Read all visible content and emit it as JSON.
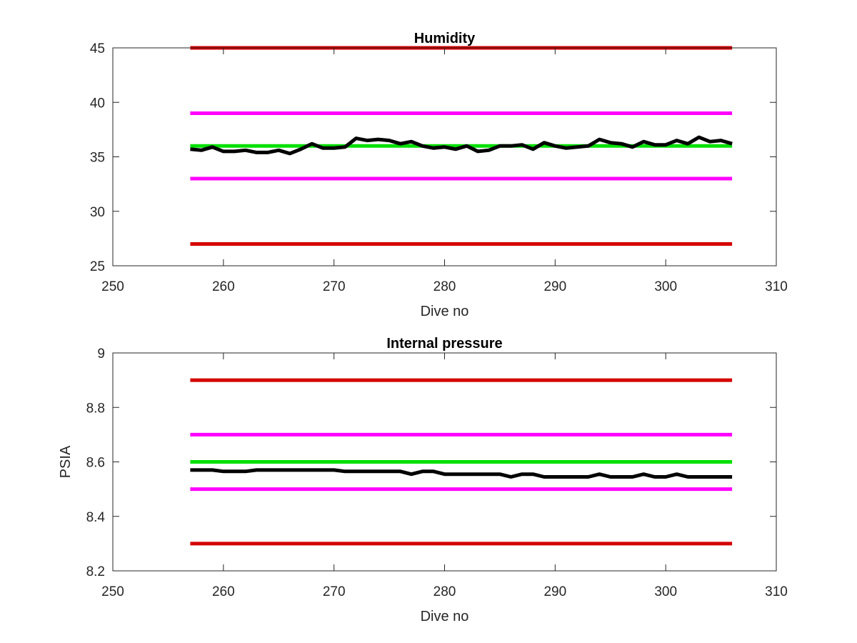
{
  "chart_data": [
    {
      "type": "line",
      "title": "Humidity",
      "xlabel": "Dive no",
      "ylabel": "",
      "xlim": [
        250,
        310
      ],
      "ylim": [
        25,
        45
      ],
      "xticks": [
        250,
        260,
        270,
        280,
        290,
        300,
        310
      ],
      "yticks": [
        25,
        30,
        35,
        40,
        45
      ],
      "grid": false,
      "series": [
        {
          "color": "#d40000",
          "x": [
            257,
            306
          ],
          "y": [
            45,
            45
          ]
        },
        {
          "color": "#ff00ff",
          "x": [
            257,
            306
          ],
          "y": [
            39,
            39
          ]
        },
        {
          "color": "#00e000",
          "x": [
            257,
            306
          ],
          "y": [
            36,
            36
          ]
        },
        {
          "color": "#ff00ff",
          "x": [
            257,
            306
          ],
          "y": [
            33,
            33
          ]
        },
        {
          "color": "#d40000",
          "x": [
            257,
            306
          ],
          "y": [
            27,
            27
          ]
        },
        {
          "color": "#000000",
          "x": [
            257,
            258,
            259,
            260,
            261,
            262,
            263,
            264,
            265,
            266,
            267,
            268,
            269,
            270,
            271,
            272,
            273,
            274,
            275,
            276,
            277,
            278,
            279,
            280,
            281,
            282,
            283,
            284,
            285,
            286,
            287,
            288,
            289,
            290,
            291,
            292,
            293,
            294,
            295,
            296,
            297,
            298,
            299,
            300,
            301,
            302,
            303,
            304,
            305,
            306
          ],
          "y": [
            35.7,
            35.6,
            35.9,
            35.5,
            35.5,
            35.6,
            35.4,
            35.4,
            35.6,
            35.3,
            35.7,
            36.2,
            35.8,
            35.8,
            35.9,
            36.7,
            36.5,
            36.6,
            36.5,
            36.2,
            36.4,
            36.0,
            35.8,
            35.9,
            35.7,
            36.0,
            35.5,
            35.6,
            36.0,
            36.0,
            36.1,
            35.7,
            36.3,
            36.0,
            35.8,
            35.9,
            36.0,
            36.6,
            36.3,
            36.2,
            35.9,
            36.4,
            36.1,
            36.1,
            36.5,
            36.2,
            36.8,
            36.4,
            36.5,
            36.2
          ]
        }
      ]
    },
    {
      "type": "line",
      "title": "Internal pressure",
      "xlabel": "Dive no",
      "ylabel": "PSIA",
      "xlim": [
        250,
        310
      ],
      "ylim": [
        8.2,
        9
      ],
      "xticks": [
        250,
        260,
        270,
        280,
        290,
        300,
        310
      ],
      "yticks": [
        8.2,
        8.4,
        8.6,
        8.8,
        9
      ],
      "grid": false,
      "series": [
        {
          "color": "#d40000",
          "x": [
            257,
            306
          ],
          "y": [
            8.9,
            8.9
          ]
        },
        {
          "color": "#ff00ff",
          "x": [
            257,
            306
          ],
          "y": [
            8.7,
            8.7
          ]
        },
        {
          "color": "#00e000",
          "x": [
            257,
            306
          ],
          "y": [
            8.6,
            8.6
          ]
        },
        {
          "color": "#ff00ff",
          "x": [
            257,
            306
          ],
          "y": [
            8.5,
            8.5
          ]
        },
        {
          "color": "#d40000",
          "x": [
            257,
            306
          ],
          "y": [
            8.3,
            8.3
          ]
        },
        {
          "color": "#000000",
          "x": [
            257,
            258,
            259,
            260,
            261,
            262,
            263,
            264,
            265,
            266,
            267,
            268,
            269,
            270,
            271,
            272,
            273,
            274,
            275,
            276,
            277,
            278,
            279,
            280,
            281,
            282,
            283,
            284,
            285,
            286,
            287,
            288,
            289,
            290,
            291,
            292,
            293,
            294,
            295,
            296,
            297,
            298,
            299,
            300,
            301,
            302,
            303,
            304,
            305,
            306
          ],
          "y": [
            8.57,
            8.57,
            8.57,
            8.565,
            8.565,
            8.565,
            8.57,
            8.57,
            8.57,
            8.57,
            8.57,
            8.57,
            8.57,
            8.57,
            8.565,
            8.565,
            8.565,
            8.565,
            8.565,
            8.565,
            8.555,
            8.565,
            8.565,
            8.555,
            8.555,
            8.555,
            8.555,
            8.555,
            8.555,
            8.545,
            8.555,
            8.555,
            8.545,
            8.545,
            8.545,
            8.545,
            8.545,
            8.555,
            8.545,
            8.545,
            8.545,
            8.555,
            8.545,
            8.545,
            8.555,
            8.545,
            8.545,
            8.545,
            8.545,
            8.545
          ]
        }
      ]
    }
  ]
}
